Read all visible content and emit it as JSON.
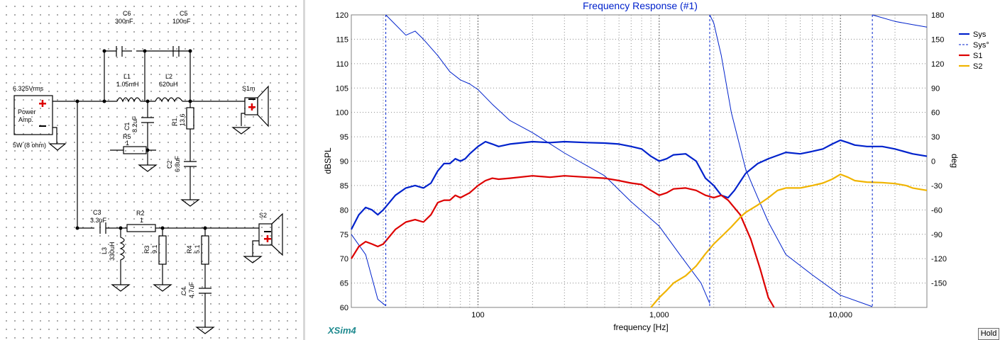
{
  "schematic": {
    "source": {
      "voltage": "6.325Vrms",
      "name_line1": "Power",
      "name_line2": "Amp.",
      "rating": "5W (8 ohm)",
      "plus": "+",
      "minus": "−"
    },
    "components": {
      "C6": {
        "name": "C6",
        "value": "300nF"
      },
      "C5": {
        "name": "C5",
        "value": "100nF"
      },
      "L1": {
        "name": "L1",
        "value": "1.05mH"
      },
      "L2": {
        "name": "L2",
        "value": "620uH"
      },
      "C1": {
        "name": "C1",
        "value": "8.2uF"
      },
      "R5": {
        "name": "R5",
        "value": "1"
      },
      "R1": {
        "name": "R1",
        "value": "13.6"
      },
      "C2": {
        "name": "C2",
        "value": "6.8uF"
      },
      "C3": {
        "name": "C3",
        "value": "3.3uF"
      },
      "R2": {
        "name": "R2",
        "value": "1"
      },
      "L3": {
        "name": "L3",
        "value": "330uH"
      },
      "R3": {
        "name": "R3",
        "value": "9.1"
      },
      "R4": {
        "name": "R4",
        "value": "5.1"
      },
      "C4": {
        "name": "C4",
        "value": "4.7uF"
      }
    },
    "speakers": {
      "s1": "S1m",
      "s2": "S2"
    }
  },
  "chart_data": {
    "type": "line",
    "title": "Frequency Response (#1)",
    "xlabel": "frequency [Hz]",
    "ylabel": "dBSPL",
    "y2label": "deg",
    "x_scale": "log",
    "xlim": [
      20,
      30000
    ],
    "ylim": [
      60,
      120
    ],
    "y2lim": [
      -180,
      180
    ],
    "x_ticks": [
      {
        "value": 100,
        "label": "100"
      },
      {
        "value": 1000,
        "label": "1,000"
      },
      {
        "value": 10000,
        "label": "10,000"
      }
    ],
    "y_ticks": [
      60,
      65,
      70,
      75,
      80,
      85,
      90,
      95,
      100,
      105,
      110,
      115,
      120
    ],
    "y2_ticks": [
      180,
      150,
      120,
      90,
      60,
      30,
      0,
      -30,
      -60,
      -90,
      -120,
      -150
    ],
    "grid": true,
    "legend_position": "right",
    "series": [
      {
        "name": "Sys",
        "color": "#0022cc",
        "style": "solid",
        "axis": "left",
        "points": [
          [
            20,
            76
          ],
          [
            22,
            79
          ],
          [
            24,
            80.5
          ],
          [
            26,
            80
          ],
          [
            28,
            79
          ],
          [
            30,
            80
          ],
          [
            35,
            83
          ],
          [
            40,
            84.5
          ],
          [
            45,
            85
          ],
          [
            50,
            84.5
          ],
          [
            55,
            85.5
          ],
          [
            60,
            88
          ],
          [
            65,
            89.5
          ],
          [
            70,
            89.5
          ],
          [
            75,
            90.5
          ],
          [
            80,
            90
          ],
          [
            85,
            90.5
          ],
          [
            90,
            91.5
          ],
          [
            100,
            93
          ],
          [
            110,
            94
          ],
          [
            120,
            93.5
          ],
          [
            130,
            93
          ],
          [
            150,
            93.5
          ],
          [
            200,
            94
          ],
          [
            250,
            93.8
          ],
          [
            300,
            94
          ],
          [
            400,
            93.8
          ],
          [
            500,
            93.7
          ],
          [
            600,
            93.5
          ],
          [
            700,
            93
          ],
          [
            800,
            92.5
          ],
          [
            900,
            91
          ],
          [
            1000,
            90
          ],
          [
            1100,
            90.5
          ],
          [
            1200,
            91.3
          ],
          [
            1400,
            91.5
          ],
          [
            1600,
            90
          ],
          [
            1800,
            86.5
          ],
          [
            2000,
            85
          ],
          [
            2200,
            83
          ],
          [
            2400,
            82.5
          ],
          [
            2600,
            84
          ],
          [
            3000,
            87.5
          ],
          [
            3500,
            89.5
          ],
          [
            4000,
            90.5
          ],
          [
            5000,
            91.8
          ],
          [
            6000,
            91.5
          ],
          [
            7000,
            92
          ],
          [
            8000,
            92.5
          ],
          [
            9000,
            93.5
          ],
          [
            10000,
            94.3
          ],
          [
            11000,
            93.8
          ],
          [
            12000,
            93.3
          ],
          [
            14000,
            93
          ],
          [
            17000,
            93
          ],
          [
            20000,
            92.5
          ],
          [
            25000,
            91.5
          ],
          [
            30000,
            91
          ]
        ]
      },
      {
        "name": "Sys°",
        "color": "#0022cc",
        "style": "dashed-thin",
        "axis": "right",
        "points": [
          [
            20,
            -90
          ],
          [
            24,
            -115
          ],
          [
            28,
            -170
          ],
          [
            31,
            -178
          ],
          [
            31.01,
            180
          ],
          [
            40,
            155
          ],
          [
            45,
            160
          ],
          [
            50,
            150
          ],
          [
            60,
            130
          ],
          [
            70,
            110
          ],
          [
            80,
            100
          ],
          [
            90,
            95
          ],
          [
            100,
            88
          ],
          [
            120,
            70
          ],
          [
            150,
            50
          ],
          [
            200,
            35
          ],
          [
            300,
            10
          ],
          [
            500,
            -18
          ],
          [
            700,
            -50
          ],
          [
            1000,
            -80
          ],
          [
            1300,
            -115
          ],
          [
            1700,
            -150
          ],
          [
            1900,
            -175
          ],
          [
            1900.5,
            180
          ],
          [
            2000,
            170
          ],
          [
            2200,
            130
          ],
          [
            2500,
            60
          ],
          [
            3000,
            -10
          ],
          [
            3500,
            -45
          ],
          [
            4000,
            -75
          ],
          [
            5000,
            -115
          ],
          [
            7000,
            -140
          ],
          [
            10000,
            -165
          ],
          [
            15000,
            -179
          ],
          [
            15000.5,
            180
          ],
          [
            20000,
            172
          ],
          [
            25000,
            168
          ],
          [
            30000,
            165
          ]
        ]
      },
      {
        "name": "S1",
        "color": "#dd0000",
        "style": "solid",
        "axis": "left",
        "points": [
          [
            20,
            70
          ],
          [
            22,
            72.5
          ],
          [
            24,
            73.5
          ],
          [
            26,
            73
          ],
          [
            28,
            72.5
          ],
          [
            30,
            73
          ],
          [
            35,
            76
          ],
          [
            40,
            77.5
          ],
          [
            45,
            78
          ],
          [
            50,
            77.5
          ],
          [
            55,
            79
          ],
          [
            60,
            81.5
          ],
          [
            65,
            82
          ],
          [
            70,
            82
          ],
          [
            75,
            83
          ],
          [
            80,
            82.5
          ],
          [
            90,
            83.5
          ],
          [
            100,
            85
          ],
          [
            110,
            86
          ],
          [
            120,
            86.5
          ],
          [
            130,
            86.3
          ],
          [
            150,
            86.5
          ],
          [
            200,
            87
          ],
          [
            250,
            86.7
          ],
          [
            300,
            87
          ],
          [
            400,
            86.7
          ],
          [
            500,
            86.5
          ],
          [
            600,
            86
          ],
          [
            700,
            85.5
          ],
          [
            800,
            85.2
          ],
          [
            900,
            84
          ],
          [
            1000,
            83
          ],
          [
            1100,
            83.5
          ],
          [
            1200,
            84.3
          ],
          [
            1400,
            84.5
          ],
          [
            1600,
            84
          ],
          [
            1800,
            83
          ],
          [
            2000,
            82.5
          ],
          [
            2200,
            83
          ],
          [
            2400,
            82
          ],
          [
            2800,
            79
          ],
          [
            3200,
            74
          ],
          [
            3600,
            68
          ],
          [
            4000,
            62
          ],
          [
            4300,
            60
          ]
        ]
      },
      {
        "name": "S2",
        "color": "#f0b400",
        "style": "solid",
        "axis": "left",
        "points": [
          [
            900,
            60
          ],
          [
            1000,
            62
          ],
          [
            1100,
            63.5
          ],
          [
            1200,
            65
          ],
          [
            1400,
            66.5
          ],
          [
            1600,
            68.5
          ],
          [
            1800,
            71
          ],
          [
            2000,
            73
          ],
          [
            2200,
            74.5
          ],
          [
            2500,
            76.5
          ],
          [
            2800,
            78.5
          ],
          [
            3000,
            79.5
          ],
          [
            3500,
            81
          ],
          [
            4000,
            82.5
          ],
          [
            4500,
            84
          ],
          [
            5000,
            84.5
          ],
          [
            6000,
            84.5
          ],
          [
            7000,
            85
          ],
          [
            8000,
            85.5
          ],
          [
            9000,
            86.3
          ],
          [
            10000,
            87.3
          ],
          [
            11000,
            86.7
          ],
          [
            12000,
            86
          ],
          [
            14000,
            85.7
          ],
          [
            17000,
            85.6
          ],
          [
            20000,
            85.4
          ],
          [
            23000,
            85
          ],
          [
            25000,
            84.5
          ],
          [
            30000,
            84
          ]
        ]
      }
    ]
  },
  "footer": {
    "brand": "XSim4",
    "hold_label": "Hold"
  }
}
